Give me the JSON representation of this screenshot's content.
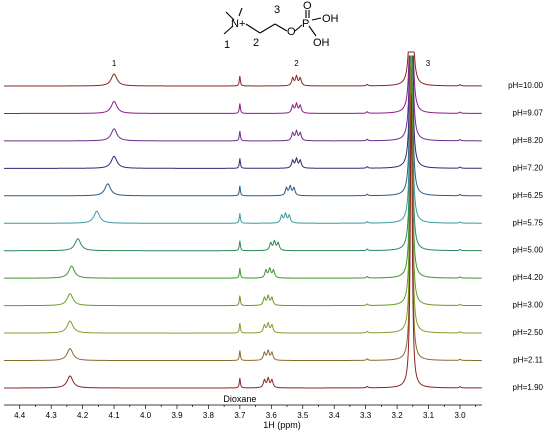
{
  "chart_data": {
    "type": "line",
    "title": "",
    "xlabel": "1H (ppm)",
    "ylabel": "",
    "x_reversed": true,
    "xlim": [
      4.45,
      2.93
    ],
    "x_ticks": [
      4.4,
      4.3,
      4.2,
      4.1,
      4.0,
      3.9,
      3.8,
      3.7,
      3.6,
      3.5,
      3.4,
      3.3,
      3.2,
      3.1,
      3.0
    ],
    "grid": false,
    "legend": "none",
    "peak_labels": [
      {
        "text": "1",
        "x": 4.1
      },
      {
        "text": "2",
        "x": 3.52
      },
      {
        "text": "3",
        "x": 3.14
      }
    ],
    "annotation": {
      "text": "Dioxane",
      "x": 3.7
    },
    "molecule": {
      "labels": [
        "1",
        "2",
        "3",
        "N+",
        "O",
        "P",
        "O",
        "OH",
        "OH"
      ]
    },
    "fixed_peaks": {
      "dioxane_ppm": 3.7,
      "methyl_ppm": 3.155
    },
    "series": [
      {
        "name": "pH=10.00",
        "color": "#8b2323",
        "p1": 4.1,
        "p2": 3.52
      },
      {
        "name": "pH=9.07",
        "color": "#8b1a8b",
        "p1": 4.1,
        "p2": 3.52
      },
      {
        "name": "pH=8.20",
        "color": "#6a2c8c",
        "p1": 4.1,
        "p2": 3.52
      },
      {
        "name": "pH=7.20",
        "color": "#2a2a7a",
        "p1": 4.1,
        "p2": 3.52
      },
      {
        "name": "pH=6.25",
        "color": "#2a5c8c",
        "p1": 4.12,
        "p2": 3.54
      },
      {
        "name": "pH=5.75",
        "color": "#3a9aa0",
        "p1": 4.155,
        "p2": 3.555
      },
      {
        "name": "pH=5.00",
        "color": "#2a8a5a",
        "p1": 4.215,
        "p2": 3.59
      },
      {
        "name": "pH=4.20",
        "color": "#3a9a2a",
        "p1": 4.235,
        "p2": 3.605
      },
      {
        "name": "pH=3.00",
        "color": "#6a9a2a",
        "p1": 4.24,
        "p2": 3.61
      },
      {
        "name": "pH=2.50",
        "color": "#8a9a2a",
        "p1": 4.24,
        "p2": 3.61
      },
      {
        "name": "pH=2.11",
        "color": "#8a6a2a",
        "p1": 4.24,
        "p2": 3.61
      },
      {
        "name": "pH=1.90",
        "color": "#8b2323",
        "p1": 4.24,
        "p2": 3.61
      }
    ]
  }
}
